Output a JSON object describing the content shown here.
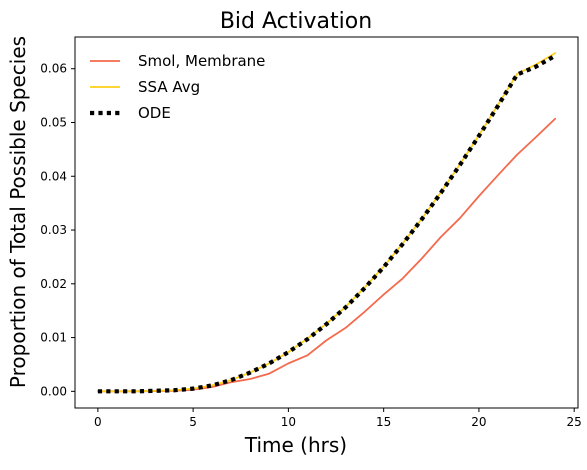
{
  "chart_data": {
    "type": "line",
    "title": "Bid Activation",
    "xlabel": "Time (hrs)",
    "ylabel": "Proportion of Total Possible Species",
    "xlim": [
      -1.2,
      25.2
    ],
    "ylim": [
      -0.0031,
      0.0659
    ],
    "xticks": [
      0,
      5,
      10,
      15,
      20,
      25
    ],
    "xtick_labels": [
      "0",
      "5",
      "10",
      "15",
      "20",
      "25"
    ],
    "yticks": [
      0.0,
      0.01,
      0.02,
      0.03,
      0.04,
      0.05,
      0.06
    ],
    "ytick_labels": [
      "0.00",
      "0.01",
      "0.02",
      "0.03",
      "0.04",
      "0.05",
      "0.06"
    ],
    "grid": false,
    "legend": {
      "position": "top-left",
      "frame": false
    },
    "series": [
      {
        "name": "Smol, Membrane",
        "color": "#f36a4d",
        "style": "solid",
        "x": [
          0,
          2,
          4,
          5,
          6,
          7,
          8,
          9,
          10,
          11,
          12,
          13,
          14,
          15,
          16,
          17,
          18,
          19,
          20,
          21,
          22,
          23,
          24
        ],
        "y": [
          0.0,
          0.0,
          0.0001,
          0.0003,
          0.0008,
          0.0017,
          0.0023,
          0.0033,
          0.0052,
          0.0067,
          0.0095,
          0.0118,
          0.0148,
          0.018,
          0.021,
          0.0247,
          0.0287,
          0.0322,
          0.0363,
          0.0402,
          0.044,
          0.0473,
          0.0507
        ]
      },
      {
        "name": "SSA Avg",
        "color": "#ffd11a",
        "style": "solid",
        "x": [
          0,
          2,
          4,
          5,
          6,
          7,
          8,
          9,
          10,
          11,
          12,
          13,
          14,
          15,
          16,
          17,
          18,
          19,
          20,
          21,
          22,
          23,
          24
        ],
        "y": [
          0.0,
          0.0,
          0.0002,
          0.0005,
          0.0011,
          0.0021,
          0.0035,
          0.0052,
          0.0073,
          0.0098,
          0.0126,
          0.0157,
          0.0193,
          0.0232,
          0.0275,
          0.0321,
          0.037,
          0.0422,
          0.0476,
          0.0533,
          0.059,
          0.0608,
          0.0629
        ]
      },
      {
        "name": "ODE",
        "color": "#000000",
        "style": "dotted",
        "x": [
          0,
          2,
          4,
          5,
          6,
          7,
          8,
          9,
          10,
          11,
          12,
          13,
          14,
          15,
          16,
          17,
          18,
          19,
          20,
          21,
          22,
          23,
          24
        ],
        "y": [
          0.0,
          0.0,
          0.0002,
          0.0005,
          0.0011,
          0.0021,
          0.0035,
          0.0052,
          0.0073,
          0.0097,
          0.0125,
          0.0156,
          0.0192,
          0.0231,
          0.0274,
          0.032,
          0.0369,
          0.0421,
          0.0475,
          0.0531,
          0.0589,
          0.0604,
          0.0624
        ]
      }
    ]
  }
}
